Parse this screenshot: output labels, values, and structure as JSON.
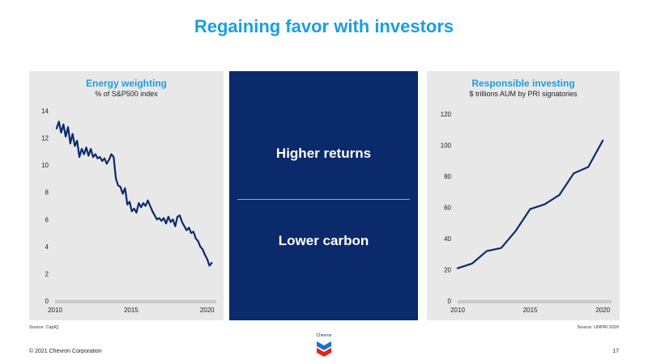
{
  "page": {
    "title": "Regaining favor with investors",
    "copyright": "© 2021 Chevron Corporation",
    "page_number": "17",
    "logo_text": "Chevron"
  },
  "middle": {
    "top_text": "Higher returns",
    "bottom_text": "Lower carbon"
  },
  "colors": {
    "title": "#1a9ee2",
    "line": "#0a2a6b",
    "panel_bg": "#e8e8e8",
    "middle_bg": "#0a2a6b"
  },
  "chart_data": [
    {
      "type": "line",
      "title": "Energy weighting",
      "subtitle": "% of S&P500 index",
      "source": "Source: CapIQ",
      "xlim": [
        2010,
        2020.6
      ],
      "ylim": [
        0,
        14
      ],
      "xticks": [
        2010,
        2015,
        2020
      ],
      "yticks": [
        0,
        2,
        4,
        6,
        8,
        10,
        12,
        14
      ],
      "series": [
        {
          "x": [
            2010.1,
            2010.25,
            2010.4,
            2010.55,
            2010.7,
            2010.85,
            2011.0,
            2011.15,
            2011.3,
            2011.45,
            2011.6,
            2011.75,
            2011.9,
            2012.05,
            2012.2,
            2012.35,
            2012.5,
            2012.65,
            2012.8,
            2012.95,
            2013.1,
            2013.25,
            2013.4,
            2013.55,
            2013.7,
            2013.85,
            2014.0,
            2014.15,
            2014.3,
            2014.45,
            2014.6,
            2014.75,
            2014.9,
            2015.05,
            2015.2,
            2015.35,
            2015.5,
            2015.65,
            2015.8,
            2015.95,
            2016.1,
            2016.25,
            2016.4,
            2016.55,
            2016.7,
            2016.85,
            2017.0,
            2017.15,
            2017.3,
            2017.45,
            2017.6,
            2017.75,
            2017.9,
            2018.05,
            2018.2,
            2018.35,
            2018.5,
            2018.65,
            2018.8,
            2018.95,
            2019.1,
            2019.25,
            2019.4,
            2019.55,
            2019.7,
            2019.85,
            2020.0,
            2020.15,
            2020.3
          ],
          "y": [
            12.7,
            13.2,
            12.4,
            13.0,
            12.1,
            12.8,
            11.6,
            12.3,
            11.4,
            11.8,
            10.6,
            11.2,
            10.8,
            11.3,
            10.7,
            11.2,
            10.6,
            10.8,
            10.5,
            10.6,
            10.3,
            10.5,
            10.1,
            10.4,
            10.8,
            10.6,
            9.0,
            8.5,
            8.4,
            7.9,
            8.3,
            7.1,
            7.3,
            6.6,
            6.8,
            6.5,
            7.2,
            6.9,
            7.2,
            7.0,
            7.4,
            7.0,
            6.6,
            6.3,
            6.0,
            6.1,
            5.9,
            6.1,
            5.7,
            6.2,
            5.8,
            6.0,
            5.5,
            6.2,
            6.3,
            5.8,
            5.5,
            5.2,
            5.4,
            5.0,
            5.1,
            4.6,
            4.4,
            4.0,
            3.8,
            3.4,
            3.1,
            2.6,
            2.8
          ]
        }
      ]
    },
    {
      "type": "line",
      "title": "Responsible investing",
      "subtitle": "$ trillions AUM by PRI signatories",
      "source": "Source: UNPRI 2020",
      "xlim": [
        2010,
        2020.6
      ],
      "ylim": [
        0,
        120
      ],
      "xticks": [
        2010,
        2015,
        2020
      ],
      "yticks": [
        0,
        20,
        40,
        60,
        80,
        100,
        120
      ],
      "series": [
        {
          "x": [
            2010,
            2011,
            2012,
            2013,
            2014,
            2015,
            2016,
            2017,
            2018,
            2019,
            2020
          ],
          "y": [
            21,
            24,
            32,
            34,
            45,
            59,
            62,
            68,
            82,
            86,
            103
          ]
        }
      ]
    }
  ]
}
